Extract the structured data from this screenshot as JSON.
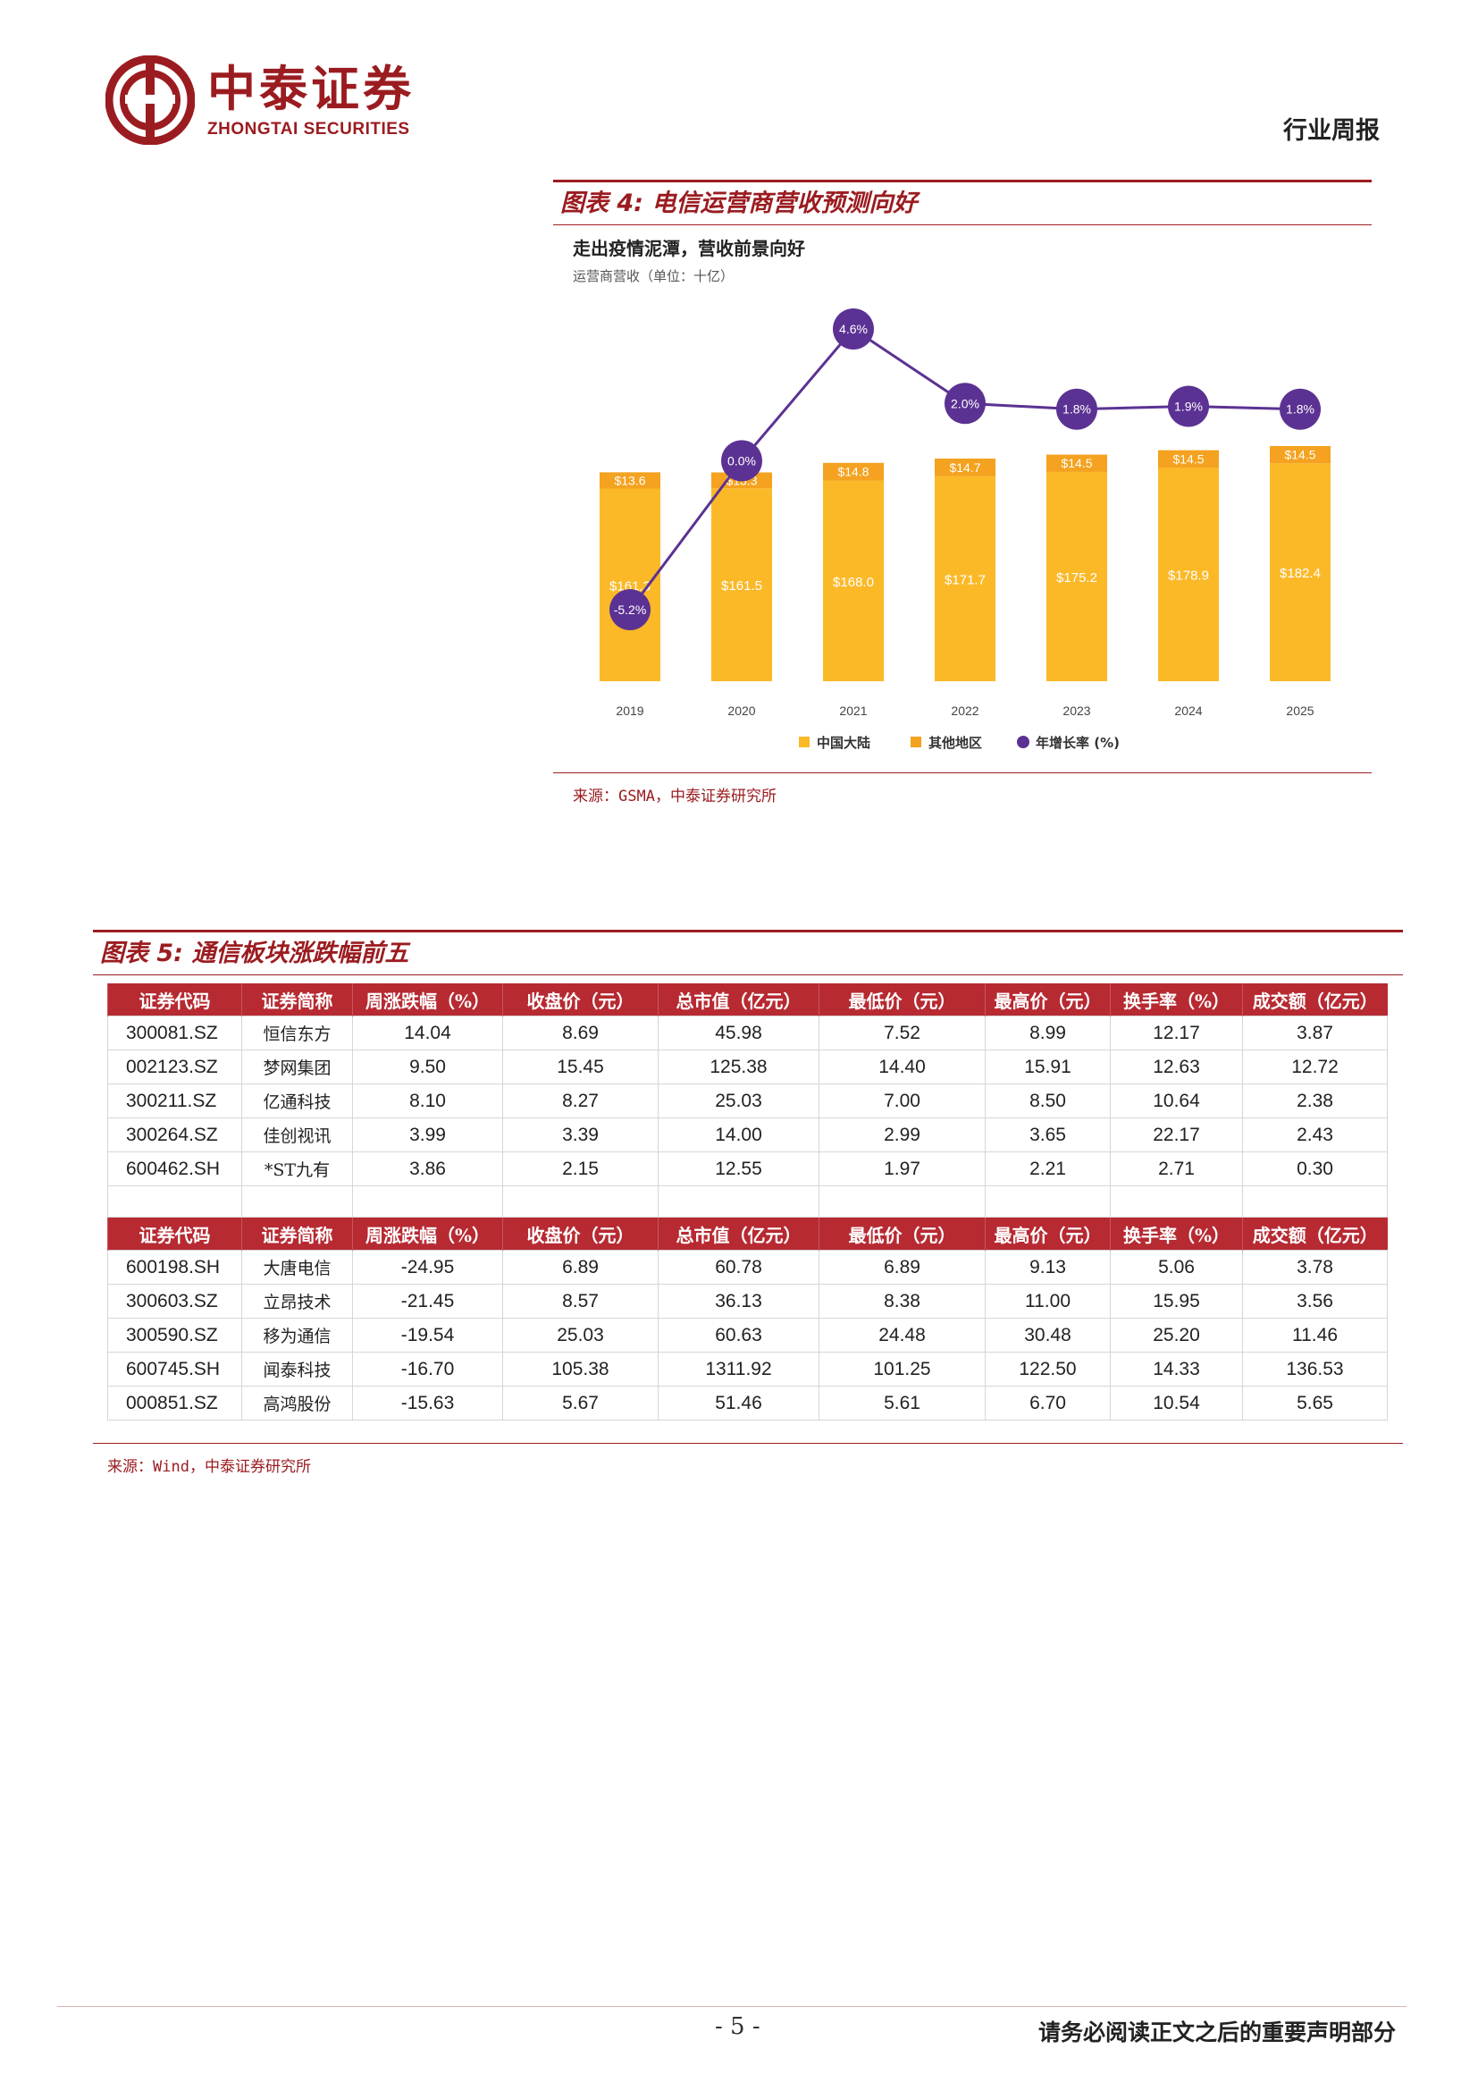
{
  "header": {
    "brand_cn": "中泰证券",
    "brand_en": "ZHONGTAI SECURITIES",
    "report_type": "行业周报",
    "brand_color": "#9b1c20"
  },
  "figure4": {
    "title": "图表 4:  电信运营商营收预测向好",
    "source": "来源：GSMA，中泰证券研究所",
    "chart_data": {
      "type": "bar",
      "stacked": true,
      "title": "走出疫情泥潭，营收前景向好",
      "subtitle": "运营商营收（单位：十亿）",
      "categories": [
        "2019",
        "2020",
        "2021",
        "2022",
        "2023",
        "2024",
        "2025"
      ],
      "series": [
        {
          "name": "中国大陆",
          "color": "#fbb928",
          "values": [
            161.3,
            161.5,
            168.0,
            171.7,
            175.2,
            178.9,
            182.4
          ],
          "labels": [
            "$161.3",
            "$161.5",
            "$168.0",
            "$171.7",
            "$175.2",
            "$178.9",
            "$182.4"
          ]
        },
        {
          "name": "其他地区",
          "color": "#f4a21f",
          "values": [
            13.6,
            13.3,
            14.8,
            14.7,
            14.5,
            14.5,
            14.5
          ],
          "labels": [
            "$13.6",
            "$13.3",
            "$14.8",
            "$14.7",
            "$14.5",
            "$14.5",
            "$14.5"
          ]
        },
        {
          "name": "年增长率 (%)",
          "type": "line",
          "color": "#5b3293",
          "values": [
            -5.2,
            0.0,
            4.6,
            2.0,
            1.8,
            1.9,
            1.8
          ],
          "labels": [
            "-5.2%",
            "0.0%",
            "4.6%",
            "2.0%",
            "1.8%",
            "1.9%",
            "1.8%"
          ]
        }
      ],
      "legend": "bottom",
      "grid": false
    }
  },
  "figure5": {
    "title": "图表 5:  通信板块涨跌幅前五",
    "source": "来源：Wind，中泰证券研究所",
    "headers": [
      "证券代码",
      "证券简称",
      "周涨跌幅（%）",
      "收盘价（元）",
      "总市值（亿元）",
      "最低价（元）",
      "最高价（元）",
      "换手率（%）",
      "成交额（亿元）"
    ],
    "gainers": [
      [
        "300081.SZ",
        "恒信东方",
        "14.04",
        "8.69",
        "45.98",
        "7.52",
        "8.99",
        "12.17",
        "3.87"
      ],
      [
        "002123.SZ",
        "梦网集团",
        "9.50",
        "15.45",
        "125.38",
        "14.40",
        "15.91",
        "12.63",
        "12.72"
      ],
      [
        "300211.SZ",
        "亿通科技",
        "8.10",
        "8.27",
        "25.03",
        "7.00",
        "8.50",
        "10.64",
        "2.38"
      ],
      [
        "300264.SZ",
        "佳创视讯",
        "3.99",
        "3.39",
        "14.00",
        "2.99",
        "3.65",
        "22.17",
        "2.43"
      ],
      [
        "600462.SH",
        "*ST九有",
        "3.86",
        "2.15",
        "12.55",
        "1.97",
        "2.21",
        "2.71",
        "0.30"
      ]
    ],
    "losers": [
      [
        "600198.SH",
        "大唐电信",
        "-24.95",
        "6.89",
        "60.78",
        "6.89",
        "9.13",
        "5.06",
        "3.78"
      ],
      [
        "300603.SZ",
        "立昂技术",
        "-21.45",
        "8.57",
        "36.13",
        "8.38",
        "11.00",
        "15.95",
        "3.56"
      ],
      [
        "300590.SZ",
        "移为通信",
        "-19.54",
        "25.03",
        "60.63",
        "24.48",
        "30.48",
        "25.20",
        "11.46"
      ],
      [
        "600745.SH",
        "闻泰科技",
        "-16.70",
        "105.38",
        "1311.92",
        "101.25",
        "122.50",
        "14.33",
        "136.53"
      ],
      [
        "000851.SZ",
        "高鸿股份",
        "-15.63",
        "5.67",
        "51.46",
        "5.61",
        "6.70",
        "10.54",
        "5.65"
      ]
    ]
  },
  "footer": {
    "page_number": "- 5 -",
    "disclaimer": "请务必阅读正文之后的重要声明部分"
  }
}
